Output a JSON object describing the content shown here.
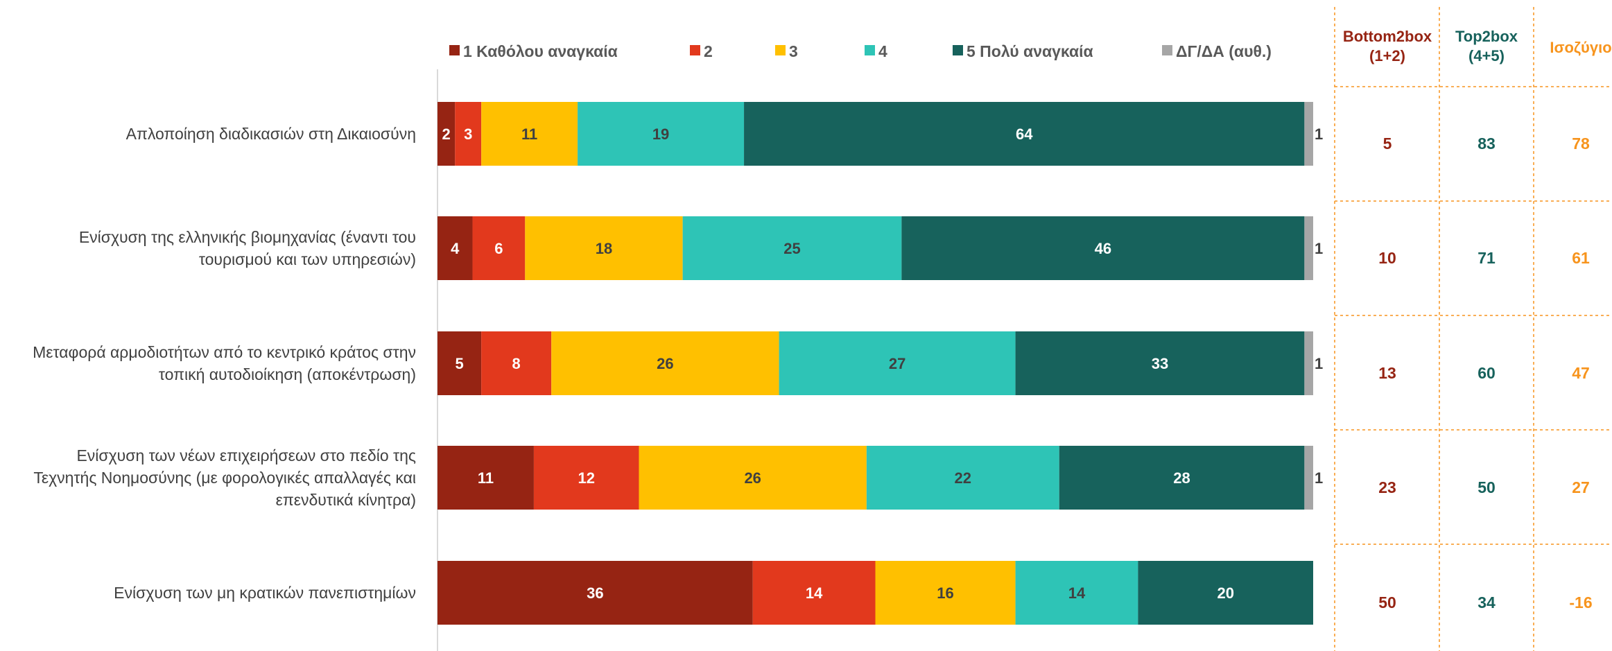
{
  "chart_data": {
    "type": "bar",
    "orientation": "horizontal",
    "stacked": true,
    "xlim": [
      0,
      100
    ],
    "categories": [
      [
        "Απλοποίηση διαδικασιών στη Δικαιοσύνη"
      ],
      [
        "Ενίσχυση της ελληνικής βιομηχανίας (έναντι του",
        "τουρισμού και των υπηρεσιών)"
      ],
      [
        "Μεταφορά αρμοδιοτήτων από το κεντρικό κράτος στην",
        "τοπική αυτοδιοίκηση (αποκέντρωση)"
      ],
      [
        "Ενίσχυση των νέων επιχειρήσεων στο πεδίο της",
        "Τεχνητής Νοημοσύνης (με φορολογικές απαλλαγές και",
        "επενδυτικά κίνητρα)"
      ],
      [
        "Ενίσχυση των μη κρατικών πανεπιστημίων"
      ]
    ],
    "series": [
      {
        "name": "1 Καθόλου αναγκαία",
        "color": "#962413",
        "label_color": "#ffffff",
        "values": [
          2,
          4,
          5,
          11,
          36
        ]
      },
      {
        "name": "2",
        "color": "#e2391d",
        "label_color": "#ffffff",
        "values": [
          3,
          6,
          8,
          12,
          14
        ]
      },
      {
        "name": "3",
        "color": "#ffc000",
        "label_color": "#404040",
        "values": [
          11,
          18,
          26,
          26,
          16
        ]
      },
      {
        "name": "4",
        "color": "#2ec4b6",
        "label_color": "#404040",
        "values": [
          19,
          25,
          27,
          22,
          14
        ]
      },
      {
        "name": "5 Πολύ αναγκαία",
        "color": "#17625c",
        "label_color": "#ffffff",
        "values": [
          64,
          46,
          33,
          28,
          20
        ]
      },
      {
        "name": "ΔΓ/ΔΑ (αυθ.)",
        "color": "#a6a6a6",
        "label_color": "#404040",
        "values": [
          1,
          1,
          1,
          1,
          null
        ]
      }
    ],
    "summary_columns": [
      {
        "header": [
          "Bottom2box",
          "(1+2)"
        ],
        "color": "#962413",
        "values": [
          "5",
          "10",
          "13",
          "23",
          "50"
        ]
      },
      {
        "header": [
          "Top2box",
          "(4+5)"
        ],
        "color": "#17625c",
        "values": [
          "83",
          "71",
          "60",
          "50",
          "34"
        ]
      },
      {
        "header": [
          "Ισοζύγιο"
        ],
        "color": "#f7941d",
        "values": [
          "78",
          "61",
          "47",
          "27",
          "-16"
        ]
      }
    ],
    "legend_position": "top",
    "grid": false
  }
}
